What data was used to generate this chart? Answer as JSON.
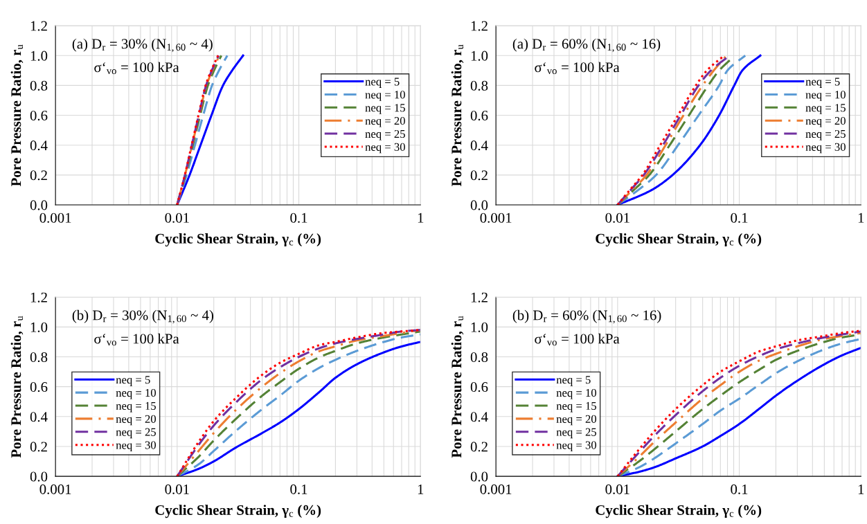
{
  "chart_data": [
    {
      "type": "line",
      "log": "x",
      "grid": true,
      "legend": "right",
      "xlabel": "Cyclic Shear Strain, γ$_{c}$ (%)",
      "ylabel": "Pore Pressure Ratio, r$_{u}$",
      "annotations": [
        "(a) D$_{r}$ = 30% (N$_{1,60}$ ~ 4)",
        "σ‘$_{vo}$ = 100 kPa"
      ],
      "xlim": [
        0.001,
        1
      ],
      "ylim": [
        0,
        1.2
      ],
      "xticks": [
        0.001,
        0.01,
        0.1,
        1
      ],
      "yticks": [
        {
          "value": 0,
          "label": "0.0"
        },
        {
          "value": 0.2,
          "label": "0.2"
        },
        {
          "value": 0.4,
          "label": "0.4"
        },
        {
          "value": 0.6,
          "label": "0.6"
        },
        {
          "value": 0.8,
          "label": "0.8"
        },
        {
          "value": 1,
          "label": "1.0"
        },
        {
          "value": 1.2,
          "label": "1.2"
        }
      ],
      "series": [
        {
          "name": "neq = 5",
          "color": "#0000ff",
          "line_style": "solid",
          "x": [
            0.01,
            0.01265,
            0.01556,
            0.01914,
            0.02382,
            0.02831,
            0.03483
          ],
          "values": [
            0,
            0.2,
            0.4,
            0.6,
            0.8,
            0.9,
            1.0
          ]
        },
        {
          "name": "neq = 10",
          "color": "#5b9bd5",
          "line_style": "dashed",
          "x": [
            0.01,
            0.01195,
            0.014,
            0.01637,
            0.01936,
            0.02208,
            0.02582
          ],
          "values": [
            0,
            0.2,
            0.4,
            0.6,
            0.8,
            0.9,
            1.0
          ]
        },
        {
          "name": "neq = 15",
          "color": "#548235",
          "line_style": "dashed",
          "x": [
            0.01,
            0.0117,
            0.01346,
            0.01545,
            0.0179,
            0.02009,
            0.02307
          ],
          "values": [
            0,
            0.2,
            0.4,
            0.6,
            0.8,
            0.9,
            1.0
          ]
        },
        {
          "name": "neq = 20",
          "color": "#ed7d31",
          "line_style": "dashdot",
          "x": [
            0.01,
            0.01161,
            0.01327,
            0.01514,
            0.01742,
            0.01946,
            0.02223
          ],
          "values": [
            0,
            0.2,
            0.4,
            0.6,
            0.8,
            0.9,
            1.0
          ]
        },
        {
          "name": "neq = 25",
          "color": "#7030a0",
          "line_style": "dashed",
          "x": [
            0.01,
            0.01159,
            0.01321,
            0.01507,
            0.01729,
            0.01928,
            0.02193
          ],
          "values": [
            0,
            0.2,
            0.4,
            0.6,
            0.8,
            0.9,
            1.0
          ]
        },
        {
          "name": "neq = 30",
          "color": "#ff0000",
          "line_style": "dotted",
          "x": [
            0.01,
            0.01156,
            0.01315,
            0.01496,
            0.01714,
            0.01905,
            0.02168
          ],
          "values": [
            0,
            0.2,
            0.4,
            0.6,
            0.8,
            0.9,
            1.0
          ]
        }
      ]
    },
    {
      "type": "line",
      "log": "x",
      "grid": true,
      "legend": "right",
      "xlabel": "Cyclic Shear Strain, γ$_{c}$ (%)",
      "ylabel": "Pore Pressure Ratio, r$_{u}$",
      "annotations": [
        "(a) D$_{r}$ = 60% (N$_{1,60}$ ~ 16)",
        "σ‘$_{vo}$ = 100 kPa"
      ],
      "xlim": [
        0.001,
        1
      ],
      "ylim": [
        0,
        1.2
      ],
      "xticks": [
        0.001,
        0.01,
        0.1,
        1
      ],
      "yticks": [
        {
          "value": 0,
          "label": "0.0"
        },
        {
          "value": 0.2,
          "label": "0.2"
        },
        {
          "value": 0.4,
          "label": "0.4"
        },
        {
          "value": 0.6,
          "label": "0.6"
        },
        {
          "value": 0.8,
          "label": "0.8"
        },
        {
          "value": 1,
          "label": "1.0"
        },
        {
          "value": 1.2,
          "label": "1.2"
        }
      ],
      "series": [
        {
          "name": "neq = 5",
          "color": "#0000ff",
          "line_style": "solid",
          "x": [
            0.01,
            0.0191,
            0.0283,
            0.0476,
            0.0684,
            0.091,
            0.106,
            0.149
          ],
          "values": [
            0,
            0.1,
            0.2,
            0.4,
            0.6,
            0.8,
            0.9,
            1.0
          ]
        },
        {
          "name": "neq = 10",
          "color": "#5b9bd5",
          "line_style": "dashed",
          "x": [
            0.01,
            0.0148,
            0.0207,
            0.0314,
            0.0463,
            0.0684,
            0.08,
            0.112
          ],
          "values": [
            0,
            0.1,
            0.2,
            0.4,
            0.6,
            0.8,
            0.9,
            1.0
          ]
        },
        {
          "name": "neq = 15",
          "color": "#548235",
          "line_style": "dashed",
          "x": [
            0.01,
            0.0136,
            0.0182,
            0.0268,
            0.0386,
            0.0556,
            0.0684,
            0.0865
          ],
          "values": [
            0,
            0.1,
            0.2,
            0.4,
            0.6,
            0.8,
            0.9,
            0.98
          ]
        },
        {
          "name": "neq = 20",
          "color": "#ed7d31",
          "line_style": "dashdot",
          "x": [
            0.01,
            0.0132,
            0.0173,
            0.0248,
            0.0348,
            0.05,
            0.0617,
            0.0785
          ],
          "values": [
            0,
            0.1,
            0.2,
            0.4,
            0.6,
            0.8,
            0.9,
            1.0
          ]
        },
        {
          "name": "neq = 25",
          "color": "#7030a0",
          "line_style": "dashed",
          "x": [
            0.01,
            0.0128,
            0.0164,
            0.0236,
            0.033,
            0.0463,
            0.0585,
            0.0834
          ],
          "values": [
            0,
            0.1,
            0.2,
            0.4,
            0.6,
            0.8,
            0.9,
            1.0
          ]
        },
        {
          "name": "neq = 30",
          "color": "#ff0000",
          "line_style": "dotted",
          "x": [
            0.01,
            0.0126,
            0.016,
            0.0224,
            0.0314,
            0.044,
            0.0542,
            0.0752
          ],
          "values": [
            0,
            0.1,
            0.2,
            0.4,
            0.6,
            0.8,
            0.9,
            1.0
          ]
        }
      ]
    },
    {
      "type": "line",
      "log": "x",
      "grid": true,
      "legend": "bottom left",
      "xlabel": "Cyclic Shear Strain, γ$_{c}$ (%)",
      "ylabel": "Pore Pressure Ratio, r$_{u}$",
      "annotations": [
        "(b) D$_{r}$ = 30% (N$_{1,60}$ ~ 4)",
        "σ‘$_{vo}$ = 100 kPa"
      ],
      "xlim": [
        0.001,
        1
      ],
      "ylim": [
        0,
        1.2
      ],
      "xticks": [
        0.001,
        0.01,
        0.1,
        1
      ],
      "yticks": [
        {
          "value": 0,
          "label": "0.0"
        },
        {
          "value": 0.2,
          "label": "0.2"
        },
        {
          "value": 0.4,
          "label": "0.4"
        },
        {
          "value": 0.6,
          "label": "0.6"
        },
        {
          "value": 0.8,
          "label": "0.8"
        },
        {
          "value": 1,
          "label": "1.0"
        },
        {
          "value": 1.2,
          "label": "1.2"
        }
      ],
      "x": [
        0.01,
        0.015,
        0.02,
        0.03,
        0.05,
        0.07,
        0.1,
        0.15,
        0.2,
        0.3,
        0.5,
        0.7,
        1
      ],
      "series": [
        {
          "name": "neq = 5",
          "color": "#0000ff",
          "line_style": "solid",
          "values": [
            0,
            0.05,
            0.1,
            0.19,
            0.29,
            0.36,
            0.45,
            0.57,
            0.66,
            0.75,
            0.83,
            0.87,
            0.9
          ]
        },
        {
          "name": "neq = 10",
          "color": "#5b9bd5",
          "line_style": "dashed",
          "values": [
            0,
            0.08,
            0.17,
            0.3,
            0.45,
            0.54,
            0.64,
            0.73,
            0.78,
            0.84,
            0.9,
            0.93,
            0.95
          ]
        },
        {
          "name": "neq = 15",
          "color": "#548235",
          "line_style": "dashed",
          "values": [
            0,
            0.13,
            0.24,
            0.38,
            0.54,
            0.63,
            0.72,
            0.8,
            0.84,
            0.89,
            0.93,
            0.95,
            0.97
          ]
        },
        {
          "name": "neq = 20",
          "color": "#ed7d31",
          "line_style": "dashdot",
          "values": [
            0,
            0.17,
            0.29,
            0.44,
            0.6,
            0.69,
            0.77,
            0.84,
            0.87,
            0.91,
            0.94,
            0.96,
            0.98
          ]
        },
        {
          "name": "neq = 25",
          "color": "#7030a0",
          "line_style": "dashed",
          "values": [
            0,
            0.21,
            0.34,
            0.49,
            0.65,
            0.73,
            0.8,
            0.86,
            0.89,
            0.92,
            0.95,
            0.97,
            0.98
          ]
        },
        {
          "name": "neq = 30",
          "color": "#ff0000",
          "line_style": "dotted",
          "values": [
            0,
            0.23,
            0.37,
            0.52,
            0.68,
            0.76,
            0.82,
            0.88,
            0.9,
            0.93,
            0.96,
            0.97,
            0.98
          ]
        }
      ]
    },
    {
      "type": "line",
      "log": "x",
      "grid": true,
      "legend": "bottom left",
      "xlabel": "Cyclic Shear Strain, γ$_{c}$ (%)",
      "ylabel": "Pore Pressure Ratio, r$_{u}$",
      "annotations": [
        "(b) D$_{r}$ = 60% (N$_{1,60}$ ~ 16)",
        "σ‘$_{vo}$ = 100 kPa"
      ],
      "xlim": [
        0.001,
        1
      ],
      "ylim": [
        0,
        1.2
      ],
      "xticks": [
        0.001,
        0.01,
        0.1,
        1
      ],
      "yticks": [
        {
          "value": 0,
          "label": "0.0"
        },
        {
          "value": 0.2,
          "label": "0.2"
        },
        {
          "value": 0.4,
          "label": "0.4"
        },
        {
          "value": 0.6,
          "label": "0.6"
        },
        {
          "value": 0.8,
          "label": "0.8"
        },
        {
          "value": 1,
          "label": "1.0"
        },
        {
          "value": 1.2,
          "label": "1.2"
        }
      ],
      "x": [
        0.01,
        0.015,
        0.02,
        0.03,
        0.05,
        0.07,
        0.1,
        0.15,
        0.2,
        0.3,
        0.5,
        0.7,
        1
      ],
      "series": [
        {
          "name": "neq = 5",
          "color": "#0000ff",
          "line_style": "solid",
          "values": [
            0,
            0.03,
            0.06,
            0.12,
            0.2,
            0.27,
            0.35,
            0.46,
            0.54,
            0.64,
            0.75,
            0.81,
            0.86
          ]
        },
        {
          "name": "neq = 10",
          "color": "#5b9bd5",
          "line_style": "dashed",
          "values": [
            0,
            0.06,
            0.12,
            0.22,
            0.35,
            0.44,
            0.52,
            0.62,
            0.69,
            0.77,
            0.85,
            0.89,
            0.92
          ]
        },
        {
          "name": "neq = 15",
          "color": "#548235",
          "line_style": "dashed",
          "values": [
            0,
            0.1,
            0.18,
            0.3,
            0.45,
            0.54,
            0.63,
            0.72,
            0.78,
            0.84,
            0.9,
            0.93,
            0.95
          ]
        },
        {
          "name": "neq = 20",
          "color": "#ed7d31",
          "line_style": "dashdot",
          "values": [
            0,
            0.13,
            0.23,
            0.36,
            0.52,
            0.61,
            0.7,
            0.78,
            0.82,
            0.87,
            0.92,
            0.94,
            0.96
          ]
        },
        {
          "name": "neq = 25",
          "color": "#7030a0",
          "line_style": "dashed",
          "values": [
            0,
            0.16,
            0.27,
            0.41,
            0.57,
            0.66,
            0.74,
            0.81,
            0.85,
            0.89,
            0.93,
            0.95,
            0.97
          ]
        },
        {
          "name": "neq = 30",
          "color": "#ff0000",
          "line_style": "dotted",
          "values": [
            0,
            0.18,
            0.3,
            0.45,
            0.61,
            0.7,
            0.77,
            0.84,
            0.87,
            0.91,
            0.94,
            0.96,
            0.975
          ]
        }
      ]
    }
  ]
}
